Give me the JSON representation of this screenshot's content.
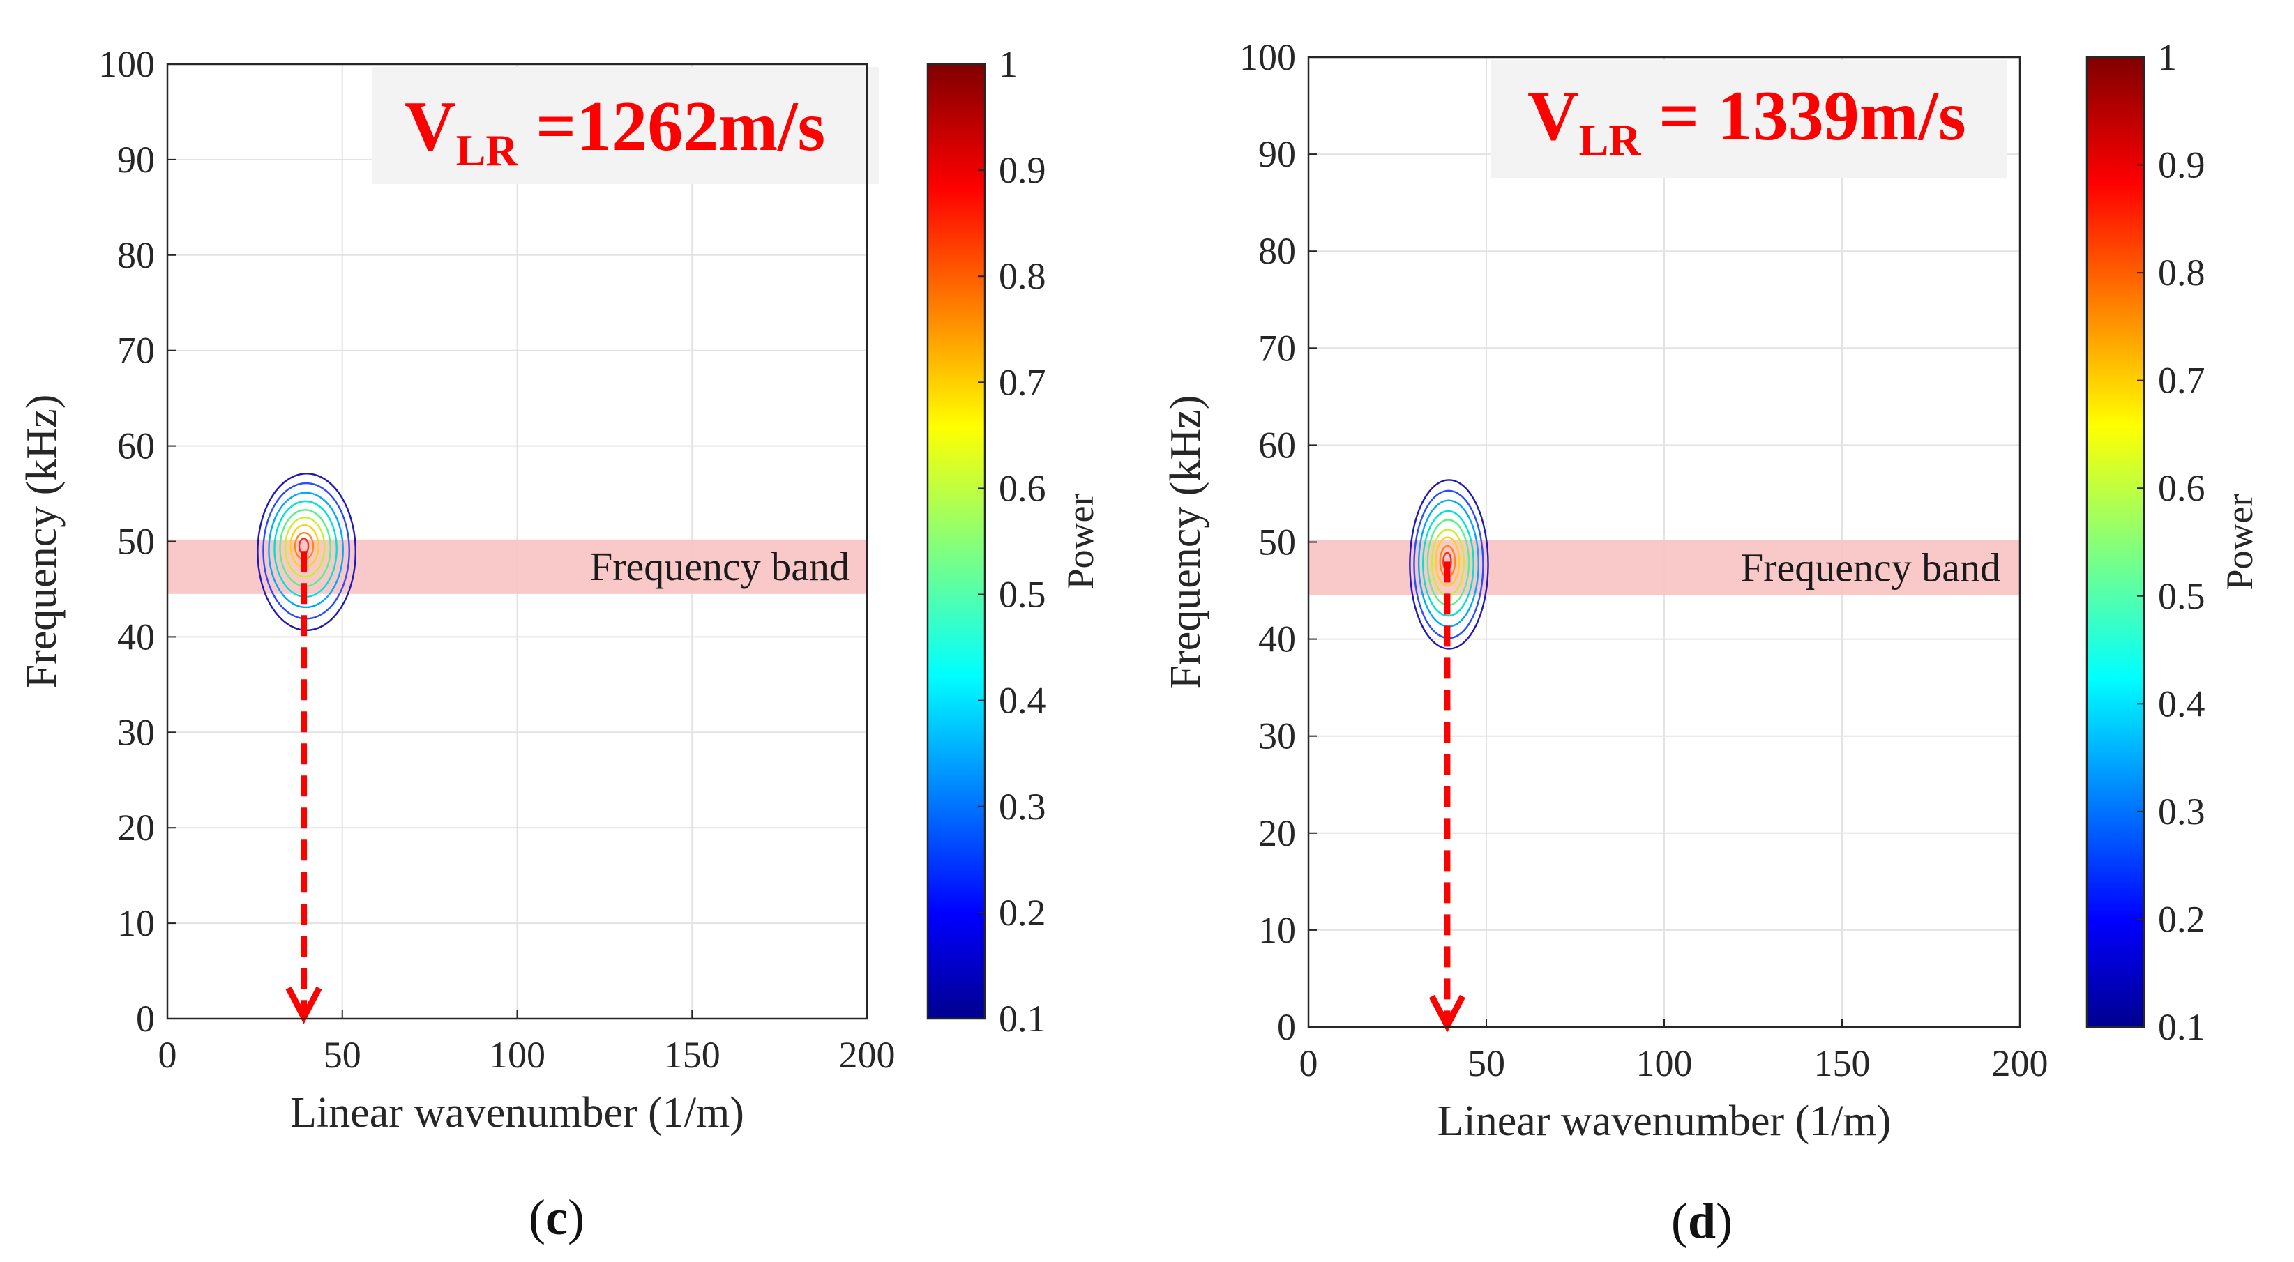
{
  "chart_data": [
    {
      "type": "contour",
      "panel_label": "c",
      "xlabel": "Linear wavenumber (1/m)",
      "ylabel": "Frequency (kHz)",
      "xlim": [
        0,
        200
      ],
      "ylim": [
        0,
        100
      ],
      "xticks": [
        0,
        50,
        100,
        150,
        200
      ],
      "yticks": [
        0,
        10,
        20,
        30,
        40,
        50,
        60,
        70,
        80,
        90,
        100
      ],
      "grid": true,
      "annotation": {
        "main": "V",
        "sub": "LR",
        "rest": " =1262m/s",
        "color": "#ff0000"
      },
      "band": {
        "label": "Frequency band",
        "ymin": 44.5,
        "ymax": 50.2,
        "color": "#f9c4c4"
      },
      "peak": {
        "x": 39,
        "y": 49.5
      },
      "contours": [
        {
          "level": 0.1,
          "rx": 14.0,
          "ry": 8.2,
          "dx": 0.8,
          "dy": -0.6
        },
        {
          "level": 0.2,
          "rx": 12.3,
          "ry": 7.1,
          "dx": 0.7,
          "dy": -0.5
        },
        {
          "level": 0.3,
          "rx": 10.6,
          "ry": 6.0,
          "dx": 0.6,
          "dy": -0.4
        },
        {
          "level": 0.4,
          "rx": 8.9,
          "ry": 5.0,
          "dx": 0.5,
          "dy": -0.3
        },
        {
          "level": 0.5,
          "rx": 7.2,
          "ry": 4.0,
          "dx": 0.4,
          "dy": -0.2
        },
        {
          "level": 0.6,
          "rx": 5.6,
          "ry": 3.1,
          "dx": 0.3,
          "dy": -0.1
        },
        {
          "level": 0.7,
          "rx": 4.0,
          "ry": 2.2,
          "dx": 0.2,
          "dy": 0.0
        },
        {
          "level": 0.8,
          "rx": 2.6,
          "ry": 1.4,
          "dx": 0.1,
          "dy": 0.0
        },
        {
          "level": 0.9,
          "rx": 1.3,
          "ry": 0.8,
          "dx": 0.0,
          "dy": 0.0
        }
      ],
      "arrow": {
        "x": 39,
        "y_from": 49,
        "y_to": 0,
        "color": "#ff0000"
      },
      "colorbar": {
        "label": "Power",
        "min": 0.1,
        "max": 1,
        "ticks": [
          "0.1",
          "0.2",
          "0.3",
          "0.4",
          "0.5",
          "0.6",
          "0.7",
          "0.8",
          "0.9",
          "1"
        ]
      }
    },
    {
      "type": "contour",
      "panel_label": "d",
      "xlabel": "Linear wavenumber (1/m)",
      "ylabel": "Frequency (kHz)",
      "xlim": [
        0,
        200
      ],
      "ylim": [
        0,
        100
      ],
      "xticks": [
        0,
        50,
        100,
        150,
        200
      ],
      "yticks": [
        0,
        10,
        20,
        30,
        40,
        50,
        60,
        70,
        80,
        90,
        100
      ],
      "grid": true,
      "annotation": {
        "main": "V",
        "sub": "LR",
        "rest": " = 1339m/s",
        "color": "#ff0000"
      },
      "band": {
        "label": "Frequency band",
        "ymin": 44.5,
        "ymax": 50.2,
        "color": "#f9c4c4"
      },
      "peak": {
        "x": 39,
        "y": 48
      },
      "contours": [
        {
          "level": 0.1,
          "rx": 11.0,
          "ry": 8.7,
          "dx": 0.5,
          "dy": -0.3
        },
        {
          "level": 0.2,
          "rx": 9.7,
          "ry": 7.6,
          "dx": 0.4,
          "dy": -0.3
        },
        {
          "level": 0.3,
          "rx": 8.4,
          "ry": 6.5,
          "dx": 0.4,
          "dy": -0.2
        },
        {
          "level": 0.4,
          "rx": 7.1,
          "ry": 5.4,
          "dx": 0.3,
          "dy": -0.2
        },
        {
          "level": 0.5,
          "rx": 5.8,
          "ry": 4.4,
          "dx": 0.3,
          "dy": -0.1
        },
        {
          "level": 0.6,
          "rx": 4.5,
          "ry": 3.4,
          "dx": 0.2,
          "dy": -0.1
        },
        {
          "level": 0.7,
          "rx": 3.3,
          "ry": 2.5,
          "dx": 0.1,
          "dy": 0.0
        },
        {
          "level": 0.8,
          "rx": 2.1,
          "ry": 1.6,
          "dx": 0.1,
          "dy": 0.0
        },
        {
          "level": 0.9,
          "rx": 1.1,
          "ry": 0.9,
          "dx": 0.0,
          "dy": 0.0
        }
      ],
      "arrow": {
        "x": 39,
        "y_from": 48,
        "y_to": 0,
        "color": "#ff0000"
      },
      "colorbar": {
        "label": "Power",
        "min": 0.1,
        "max": 1,
        "ticks": [
          "0.1",
          "0.2",
          "0.3",
          "0.4",
          "0.5",
          "0.6",
          "0.7",
          "0.8",
          "0.9",
          "1"
        ]
      }
    }
  ]
}
